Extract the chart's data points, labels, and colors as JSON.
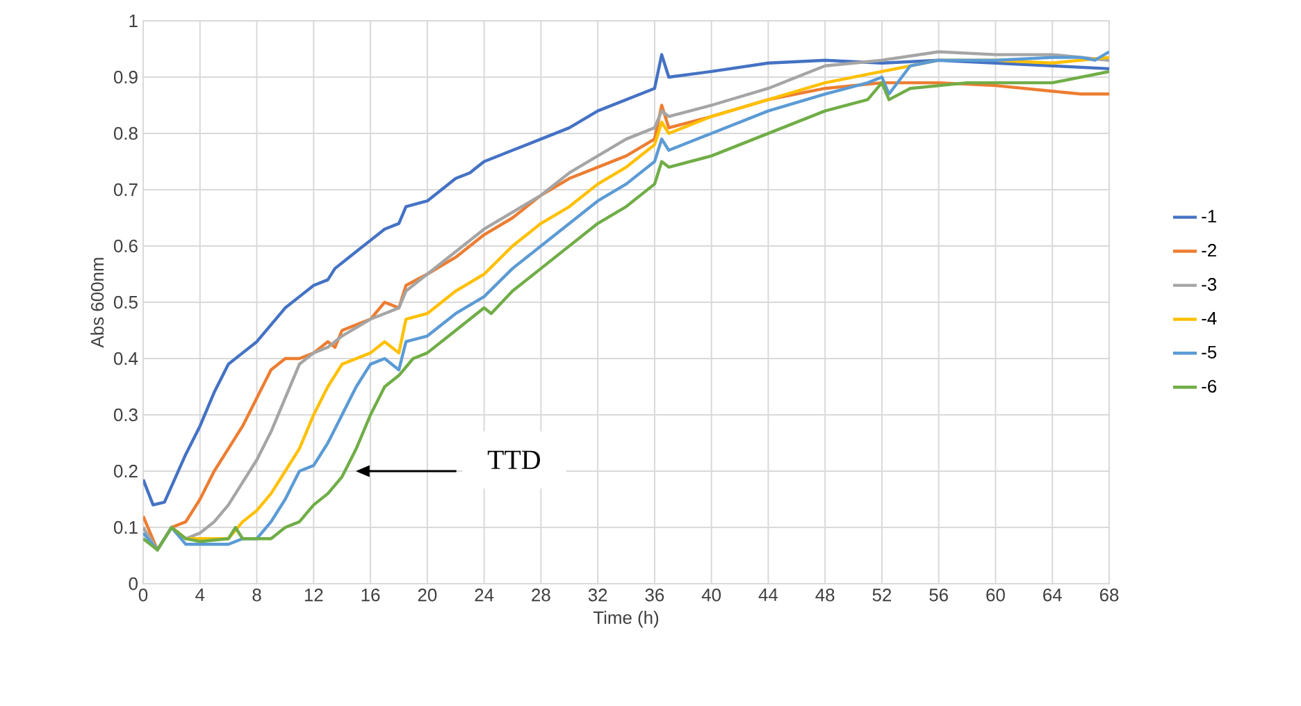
{
  "chart_data": {
    "type": "line",
    "xlabel": "Time (h)",
    "ylabel": "Abs 600nm",
    "xlim": [
      0,
      68
    ],
    "xticks": [
      0,
      4,
      8,
      12,
      16,
      20,
      24,
      28,
      32,
      36,
      40,
      44,
      48,
      52,
      56,
      60,
      64,
      68
    ],
    "ylim": [
      0,
      1
    ],
    "yticks": [
      0,
      0.1,
      0.2,
      0.3,
      0.4,
      0.5,
      0.6,
      0.7,
      0.8,
      0.9,
      1
    ],
    "grid": true,
    "legend": "right",
    "annotations": [
      "TTD"
    ],
    "series": [
      {
        "name": "-1",
        "color": "#4472c4",
        "x": [
          0,
          0.7,
          1.5,
          3,
          4,
          5,
          6,
          7,
          8,
          9,
          10,
          11,
          12,
          13,
          13.5,
          15,
          16,
          17,
          18,
          18.5,
          20,
          21,
          22,
          23,
          23.5,
          24,
          26,
          28,
          30,
          32,
          34,
          36,
          36.5,
          37,
          40,
          44,
          48,
          52,
          56,
          60,
          64,
          68
        ],
        "values": [
          0.185,
          0.14,
          0.145,
          0.23,
          0.28,
          0.34,
          0.39,
          0.41,
          0.43,
          0.46,
          0.49,
          0.51,
          0.53,
          0.54,
          0.56,
          0.59,
          0.61,
          0.63,
          0.64,
          0.67,
          0.68,
          0.7,
          0.72,
          0.73,
          0.74,
          0.75,
          0.77,
          0.79,
          0.81,
          0.84,
          0.86,
          0.88,
          0.94,
          0.9,
          0.91,
          0.925,
          0.93,
          0.925,
          0.93,
          0.925,
          0.92,
          0.915
        ]
      },
      {
        "name": "-2",
        "color": "#ed7d31",
        "x": [
          0,
          1,
          2,
          3,
          4,
          5,
          6,
          7,
          8,
          9,
          10,
          11,
          12,
          13,
          13.5,
          14,
          16,
          17,
          18,
          18.5,
          20,
          22,
          24,
          26,
          28,
          30,
          32,
          34,
          36,
          36.5,
          37,
          40,
          44,
          48,
          52,
          56,
          60,
          64,
          66,
          68
        ],
        "values": [
          0.12,
          0.06,
          0.1,
          0.11,
          0.15,
          0.2,
          0.24,
          0.28,
          0.33,
          0.38,
          0.4,
          0.4,
          0.41,
          0.43,
          0.42,
          0.45,
          0.47,
          0.5,
          0.49,
          0.53,
          0.55,
          0.58,
          0.62,
          0.65,
          0.69,
          0.72,
          0.74,
          0.76,
          0.79,
          0.85,
          0.81,
          0.83,
          0.86,
          0.88,
          0.89,
          0.89,
          0.885,
          0.875,
          0.87,
          0.87
        ]
      },
      {
        "name": "-3",
        "color": "#a5a5a5",
        "x": [
          0,
          1,
          2,
          3,
          4,
          5,
          6,
          7,
          8,
          9,
          10,
          11,
          12,
          13,
          14,
          16,
          17,
          18,
          18.5,
          20,
          22,
          24,
          26,
          28,
          30,
          32,
          34,
          36,
          36.5,
          37,
          40,
          44,
          48,
          52,
          56,
          60,
          64,
          68
        ],
        "values": [
          0.1,
          0.06,
          0.1,
          0.08,
          0.09,
          0.11,
          0.14,
          0.18,
          0.22,
          0.27,
          0.33,
          0.39,
          0.41,
          0.42,
          0.44,
          0.47,
          0.48,
          0.49,
          0.52,
          0.55,
          0.59,
          0.63,
          0.66,
          0.69,
          0.73,
          0.76,
          0.79,
          0.81,
          0.84,
          0.83,
          0.85,
          0.88,
          0.92,
          0.93,
          0.945,
          0.94,
          0.94,
          0.93
        ]
      },
      {
        "name": "-4",
        "color": "#ffc000",
        "x": [
          2,
          3,
          6,
          7,
          8,
          9,
          10,
          11,
          12,
          13,
          14,
          16,
          17,
          18,
          18.5,
          20,
          22,
          24,
          26,
          28,
          30,
          32,
          34,
          36,
          36.5,
          37,
          40,
          44,
          48,
          52,
          56,
          60,
          64,
          68
        ],
        "values": [
          0.1,
          0.08,
          0.08,
          0.11,
          0.13,
          0.16,
          0.2,
          0.24,
          0.3,
          0.35,
          0.39,
          0.41,
          0.43,
          0.41,
          0.47,
          0.48,
          0.52,
          0.55,
          0.6,
          0.64,
          0.67,
          0.71,
          0.74,
          0.78,
          0.82,
          0.8,
          0.83,
          0.86,
          0.89,
          0.91,
          0.93,
          0.93,
          0.925,
          0.935
        ]
      },
      {
        "name": "-5",
        "color": "#5b9bd5",
        "x": [
          0,
          1,
          2,
          3,
          6,
          7,
          8,
          9,
          10,
          11,
          12,
          13,
          14,
          15,
          16,
          17,
          18,
          18.5,
          20,
          22,
          24,
          26,
          28,
          30,
          32,
          34,
          36,
          36.5,
          37,
          40,
          44,
          48,
          51,
          52,
          52.5,
          54,
          56,
          60,
          64,
          66,
          67,
          68
        ],
        "values": [
          0.09,
          0.06,
          0.1,
          0.07,
          0.07,
          0.08,
          0.08,
          0.11,
          0.15,
          0.2,
          0.21,
          0.25,
          0.3,
          0.35,
          0.39,
          0.4,
          0.38,
          0.43,
          0.44,
          0.48,
          0.51,
          0.56,
          0.6,
          0.64,
          0.68,
          0.71,
          0.75,
          0.79,
          0.77,
          0.8,
          0.84,
          0.87,
          0.89,
          0.9,
          0.87,
          0.92,
          0.93,
          0.93,
          0.935,
          0.935,
          0.93,
          0.945
        ]
      },
      {
        "name": "-6",
        "color": "#70ad47",
        "x": [
          0,
          1,
          2,
          3,
          4,
          6,
          6.5,
          7,
          9,
          10,
          11,
          12,
          13,
          14,
          15,
          16,
          17,
          18,
          19,
          20,
          22,
          24,
          24.5,
          26,
          28,
          30,
          32,
          34,
          36,
          36.5,
          37,
          40,
          44,
          48,
          51,
          52,
          52.5,
          54,
          56,
          58,
          60,
          64,
          66,
          68
        ],
        "values": [
          0.08,
          0.06,
          0.1,
          0.08,
          0.075,
          0.08,
          0.1,
          0.08,
          0.08,
          0.1,
          0.11,
          0.14,
          0.16,
          0.19,
          0.24,
          0.3,
          0.35,
          0.37,
          0.4,
          0.41,
          0.45,
          0.49,
          0.48,
          0.52,
          0.56,
          0.6,
          0.64,
          0.67,
          0.71,
          0.75,
          0.74,
          0.76,
          0.8,
          0.84,
          0.86,
          0.89,
          0.86,
          0.88,
          0.885,
          0.89,
          0.89,
          0.89,
          0.9,
          0.91
        ]
      }
    ]
  }
}
